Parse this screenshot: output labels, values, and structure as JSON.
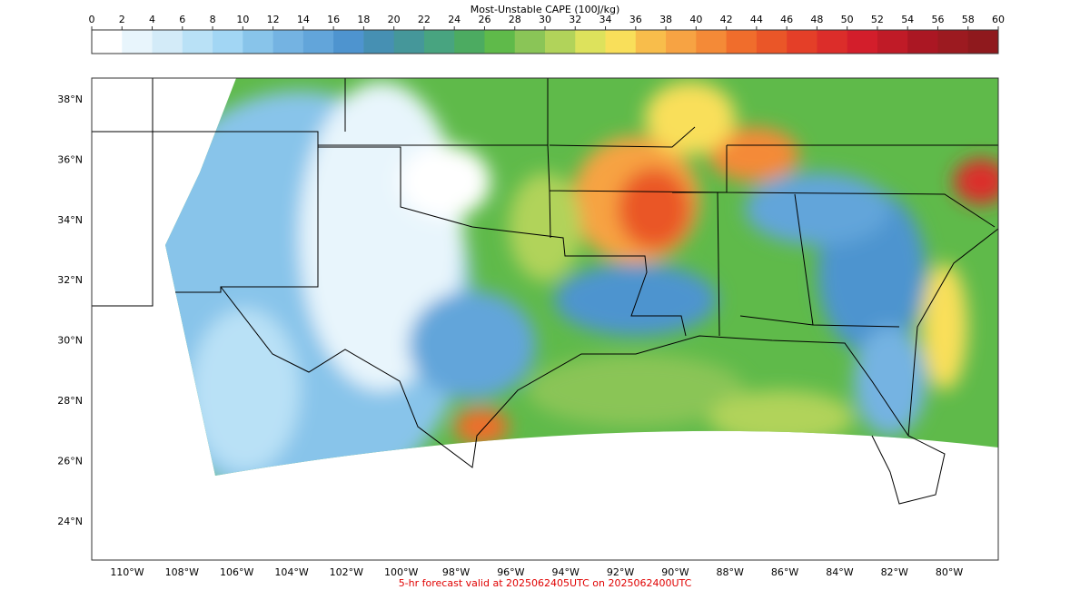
{
  "colorbar": {
    "title": "Most-Unstable CAPE (100J/kg)",
    "ticks": [
      0,
      2,
      4,
      6,
      8,
      10,
      12,
      14,
      16,
      18,
      20,
      22,
      24,
      26,
      28,
      30,
      32,
      34,
      36,
      38,
      40,
      42,
      44,
      46,
      48,
      50,
      52,
      54,
      56,
      58,
      60
    ],
    "colors": [
      "#ffffff",
      "#e8f5fc",
      "#d3ebf8",
      "#b9e1f6",
      "#a2d6f4",
      "#88c4ea",
      "#74b3e2",
      "#62a5da",
      "#4e94cf",
      "#4690b3",
      "#45979a",
      "#48a480",
      "#4cab61",
      "#5fba4a",
      "#8ac557",
      "#b1d35a",
      "#dde25c",
      "#f9df5a",
      "#f8bd4b",
      "#f7a343",
      "#f48a37",
      "#f06d2c",
      "#ea5628",
      "#e43f28",
      "#dc2d2a",
      "#d31e2b",
      "#c01b27",
      "#ab1723",
      "#9c1a20",
      "#8f191d"
    ]
  },
  "map": {
    "lat_ticks": [
      {
        "value": 38,
        "label": "38°N"
      },
      {
        "value": 36,
        "label": "36°N"
      },
      {
        "value": 34,
        "label": "34°N"
      },
      {
        "value": 32,
        "label": "32°N"
      },
      {
        "value": 30,
        "label": "30°N"
      },
      {
        "value": 28,
        "label": "28°N"
      },
      {
        "value": 26,
        "label": "26°N"
      },
      {
        "value": 24,
        "label": "24°N"
      }
    ],
    "lon_ticks": [
      {
        "value": -110,
        "label": "110°W"
      },
      {
        "value": -108,
        "label": "108°W"
      },
      {
        "value": -106,
        "label": "106°W"
      },
      {
        "value": -104,
        "label": "104°W"
      },
      {
        "value": -102,
        "label": "102°W"
      },
      {
        "value": -100,
        "label": "100°W"
      },
      {
        "value": -98,
        "label": "98°W"
      },
      {
        "value": -96,
        "label": "96°W"
      },
      {
        "value": -94,
        "label": "94°W"
      },
      {
        "value": -92,
        "label": "92°W"
      },
      {
        "value": -90,
        "label": "90°W"
      },
      {
        "value": -88,
        "label": "88°W"
      },
      {
        "value": -86,
        "label": "86°W"
      },
      {
        "value": -84,
        "label": "84°W"
      },
      {
        "value": -82,
        "label": "82°W"
      },
      {
        "value": -80,
        "label": "80°W"
      }
    ]
  },
  "footer": "5-hr forecast valid at 2025062405UTC on 2025062400UTC"
}
